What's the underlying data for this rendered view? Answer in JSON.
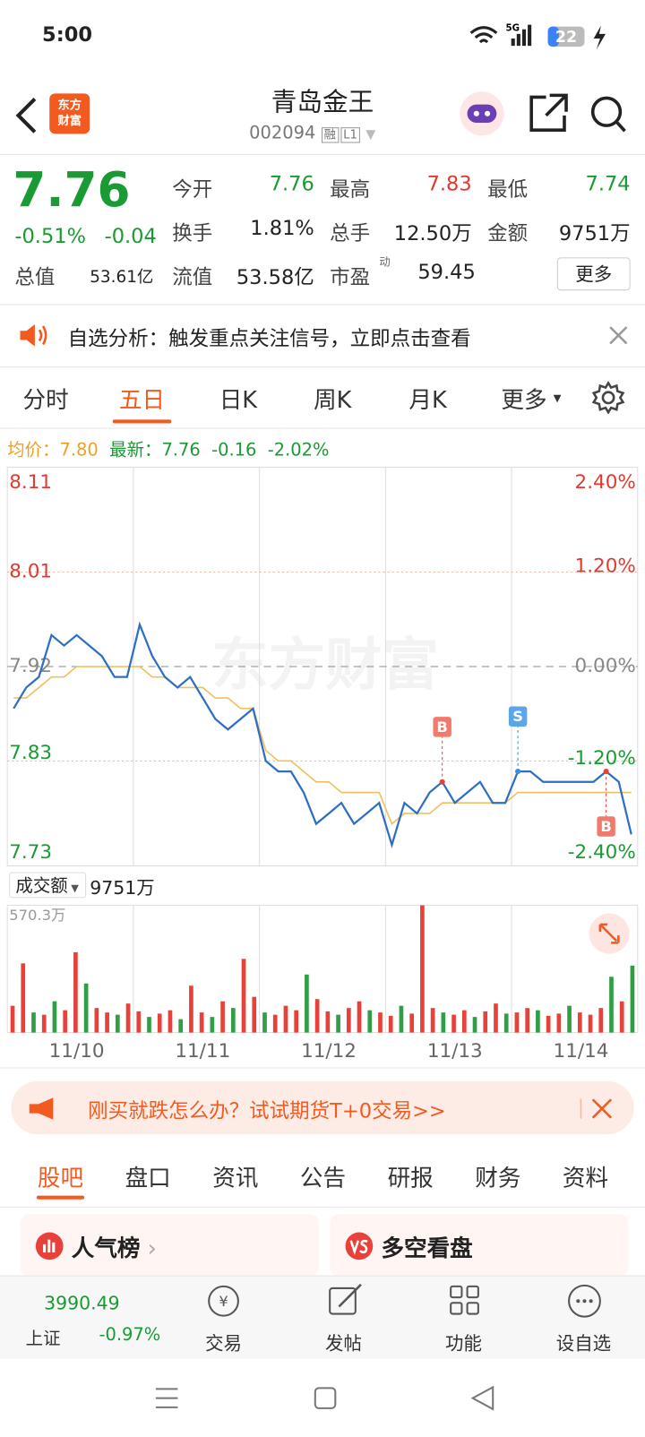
{
  "status": {
    "time": "5:00",
    "network": "5G",
    "battery": "22"
  },
  "header": {
    "logo": [
      "东方",
      "财富"
    ],
    "title": "青岛金王",
    "code": "002094",
    "tags": [
      "融",
      "L1"
    ]
  },
  "quote": {
    "price": "7.76",
    "pct": "-0.51%",
    "change": "-0.04",
    "more": "更多",
    "fields": [
      {
        "label": "今开",
        "value": "7.76",
        "color": "#1a9a32"
      },
      {
        "label": "最高",
        "value": "7.83",
        "color": "#e03a2f"
      },
      {
        "label": "最低",
        "value": "7.74",
        "color": "#1a9a32"
      },
      {
        "label": "换手",
        "value": "1.81%",
        "color": "#222222"
      },
      {
        "label": "总手",
        "value": "12.50万",
        "color": "#222222"
      },
      {
        "label": "金额",
        "value": "9751万",
        "color": "#222222"
      },
      {
        "label": "总值",
        "value": "53.61亿",
        "color": "#222222"
      },
      {
        "label": "流值",
        "value": "53.58亿",
        "color": "#222222"
      },
      {
        "label": "市盈",
        "sup": "动",
        "value": "59.45",
        "color": "#222222"
      }
    ]
  },
  "notice": {
    "text": "自选分析：触发重点关注信号，立即点击查看"
  },
  "tabs": {
    "items": [
      "分时",
      "五日",
      "日K",
      "周K",
      "月K",
      "更多"
    ],
    "active": 1
  },
  "price_chart": {
    "avg_label": "均价：",
    "avg": "7.80",
    "latest_label": "最新：",
    "latest": "7.76",
    "change": "-0.16",
    "pct": "-2.02%",
    "watermark": "东方财富",
    "prev_close": 7.92,
    "ylim": [
      7.73,
      8.11
    ],
    "yticks": [
      8.11,
      8.01,
      7.92,
      7.83,
      7.73
    ],
    "y2ticks": [
      {
        "value": 2.4,
        "label": "2.40%"
      },
      {
        "value": 1.2,
        "label": "1.20%"
      },
      {
        "value": 0,
        "label": "0.00%"
      },
      {
        "value": -1.2,
        "label": "-1.20%"
      },
      {
        "value": -2.4,
        "label": "-2.40%"
      }
    ],
    "categories": [
      "11/10",
      "11/11",
      "11/12",
      "11/13",
      "11/14"
    ],
    "price": [
      7.88,
      7.9,
      7.91,
      7.95,
      7.94,
      7.95,
      7.94,
      7.93,
      7.91,
      7.91,
      7.96,
      7.93,
      7.91,
      7.9,
      7.91,
      7.89,
      7.87,
      7.86,
      7.87,
      7.88,
      7.83,
      7.82,
      7.82,
      7.8,
      7.77,
      7.78,
      7.79,
      7.77,
      7.78,
      7.79,
      7.75,
      7.79,
      7.78,
      7.8,
      7.81,
      7.79,
      7.8,
      7.81,
      7.79,
      7.79,
      7.82,
      7.82,
      7.81,
      7.81,
      7.81,
      7.81,
      7.81,
      7.82,
      7.81,
      7.76
    ],
    "avg_line": [
      7.89,
      7.89,
      7.9,
      7.91,
      7.91,
      7.92,
      7.92,
      7.92,
      7.92,
      7.92,
      7.92,
      7.91,
      7.91,
      7.9,
      7.9,
      7.9,
      7.89,
      7.89,
      7.88,
      7.88,
      7.84,
      7.83,
      7.83,
      7.82,
      7.81,
      7.81,
      7.8,
      7.8,
      7.8,
      7.8,
      7.77,
      7.78,
      7.78,
      7.78,
      7.79,
      7.79,
      7.79,
      7.79,
      7.79,
      7.79,
      7.8,
      7.8,
      7.8,
      7.8,
      7.8,
      7.8,
      7.8,
      7.8,
      7.8,
      7.8
    ],
    "markers": [
      {
        "label": "B",
        "point": 34
      },
      {
        "label": "S",
        "point": 40
      },
      {
        "label": "B",
        "point": 47
      }
    ]
  },
  "volume": {
    "selector": "成交额",
    "total": "9751万",
    "yticks": [
      {
        "value": 570.3,
        "label": "570.3万"
      }
    ],
    "ylim": [
      0,
      570.3
    ],
    "values": [
      120,
      310,
      90,
      80,
      140,
      100,
      360,
      220,
      110,
      90,
      80,
      130,
      95,
      70,
      85,
      100,
      60,
      210,
      90,
      70,
      140,
      110,
      330,
      160,
      90,
      80,
      120,
      100,
      260,
      150,
      95,
      80,
      110,
      140,
      100,
      90,
      75,
      120,
      85,
      570,
      110,
      90,
      80,
      100,
      70,
      95,
      130,
      85,
      90,
      110,
      100,
      75,
      85,
      120,
      90,
      80,
      110,
      250,
      140,
      300
    ],
    "colors": [
      "#e8413a",
      "#e8413a",
      "#2f9e44",
      "#e8413a",
      "#2f9e44",
      "#e8413a",
      "#e8413a",
      "#2f9e44",
      "#e8413a",
      "#e8413a",
      "#2f9e44",
      "#e8413a",
      "#e8413a",
      "#2f9e44",
      "#e8413a",
      "#e8413a",
      "#2f9e44",
      "#e8413a",
      "#e8413a",
      "#2f9e44",
      "#e8413a",
      "#2f9e44",
      "#e8413a",
      "#e8413a",
      "#2f9e44",
      "#e8413a",
      "#e8413a",
      "#e8413a",
      "#2f9e44",
      "#e8413a",
      "#e8413a",
      "#2f9e44",
      "#e8413a",
      "#e8413a",
      "#2f9e44",
      "#e8413a",
      "#e8413a",
      "#2f9e44",
      "#e8413a",
      "#e8413a",
      "#e8413a",
      "#2f9e44",
      "#e8413a",
      "#e8413a",
      "#2f9e44",
      "#e8413a",
      "#e8413a",
      "#2f9e44",
      "#e8413a",
      "#e8413a",
      "#2f9e44",
      "#e8413a",
      "#e8413a",
      "#2f9e44",
      "#e8413a",
      "#e8413a",
      "#e8413a",
      "#2f9e44",
      "#e8413a",
      "#2f9e44"
    ]
  },
  "ad": {
    "text": "刚买就跌怎么办？试试期货T+0交易>>"
  },
  "subtabs": {
    "items": [
      "股吧",
      "盘口",
      "资讯",
      "公告",
      "研报",
      "财务",
      "资料"
    ],
    "active": 0
  },
  "cards": [
    "人气榜",
    "多空看盘"
  ],
  "bottom_nav": {
    "index_value": "3990.49",
    "index_name": "上证",
    "index_pct": "-0.97%",
    "items": [
      "交易",
      "发帖",
      "功能",
      "设自选"
    ]
  }
}
